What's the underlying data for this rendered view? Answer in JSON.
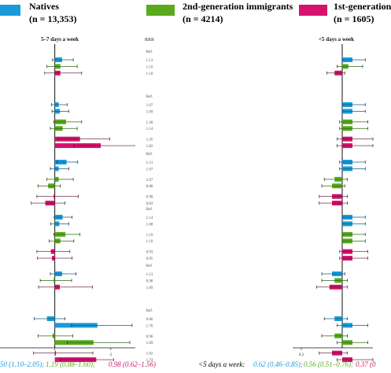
{
  "legend": {
    "natives": {
      "name": "Natives",
      "n": "(n = 13,353)",
      "color": "#1a9bd7"
    },
    "second_gen": {
      "name": "2nd-generation immigrants",
      "n": "(n = 4214)",
      "color": "#5aaa1e"
    },
    "first_gen": {
      "name": "1st-generation",
      "n": "(n = 1605)",
      "color": "#d6126e"
    }
  },
  "footer": {
    "left_prefix": "50 (1.10–2.05); ",
    "left_green": "1.19 (0.88–1.60); ",
    "left_pink": "0.98 (0.62–1.56)",
    "right_prefix": "<5 days a week: ",
    "right_blue": "0.62 (0.46–0.85); ",
    "right_green": "0.56 (0.51–0.76); ",
    "right_pink": "0.37 (0"
  },
  "chart_data": [
    {
      "type": "bar",
      "title": "5–7 days a week",
      "rrr_header": "RRR",
      "x_ticks": [
        "1",
        "2"
      ],
      "reference_line": 1,
      "xlim": [
        0.05,
        2.55
      ],
      "series": [
        "Natives",
        "2nd-generation immigrants",
        "1st-generation"
      ],
      "groups": [
        {
          "ref_label": "Ref.",
          "rows": [
            {
              "series": 0,
              "rrr": 1.13,
              "lo": 0.96,
              "hi": 1.33,
              "label": "1.13"
            },
            {
              "series": 1,
              "rrr": 1.1,
              "lo": 0.86,
              "hi": 1.4,
              "label": "1.10"
            },
            {
              "series": 2,
              "rrr": 1.1,
              "lo": 0.82,
              "hi": 1.48,
              "label": "1.10"
            }
          ]
        },
        {
          "ref_label": "Ref.",
          "rows": [
            {
              "series": 0,
              "rrr": 1.07,
              "lo": 0.94,
              "hi": 1.22,
              "label": "1.07"
            },
            {
              "series": 0,
              "rrr": 1.09,
              "lo": 0.95,
              "hi": 1.25,
              "label": "1.09"
            },
            {
              "series": 1,
              "rrr": 1.2,
              "lo": 0.98,
              "hi": 1.48,
              "label": "1.20"
            },
            {
              "series": 1,
              "rrr": 1.14,
              "lo": 0.92,
              "hi": 1.4,
              "label": "1.14"
            },
            {
              "series": 2,
              "rrr": 1.45,
              "lo": 1.06,
              "hi": 1.98,
              "label": "1.45"
            },
            {
              "series": 2,
              "rrr": 1.82,
              "lo": 1.34,
              "hi": 2.47,
              "label": "1.82"
            }
          ]
        },
        {
          "ref_label": "Ref.",
          "rows": [
            {
              "series": 0,
              "rrr": 1.21,
              "lo": 1.04,
              "hi": 1.41,
              "label": "1.21"
            },
            {
              "series": 0,
              "rrr": 1.07,
              "lo": 0.92,
              "hi": 1.25,
              "label": "1.07"
            },
            {
              "series": 1,
              "rrr": 1.07,
              "lo": 0.86,
              "hi": 1.33,
              "label": "1.07"
            },
            {
              "series": 1,
              "rrr": 0.88,
              "lo": 0.7,
              "hi": 1.1,
              "label": "0.88"
            },
            {
              "series": 2,
              "rrr": 0.98,
              "lo": 0.68,
              "hi": 1.42,
              "label": "0.98"
            },
            {
              "series": 2,
              "rrr": 0.83,
              "lo": 0.58,
              "hi": 1.18,
              "label": "0.83"
            }
          ]
        },
        {
          "ref_label": "Ref.",
          "rows": [
            {
              "series": 0,
              "rrr": 1.14,
              "lo": 0.99,
              "hi": 1.31,
              "label": "1.14"
            },
            {
              "series": 0,
              "rrr": 1.08,
              "lo": 0.93,
              "hi": 1.25,
              "label": "1.08"
            },
            {
              "series": 1,
              "rrr": 1.19,
              "lo": 0.98,
              "hi": 1.45,
              "label": "1.19"
            },
            {
              "series": 1,
              "rrr": 1.1,
              "lo": 0.9,
              "hi": 1.34,
              "label": "1.10"
            },
            {
              "series": 2,
              "rrr": 0.93,
              "lo": 0.68,
              "hi": 1.27,
              "label": "0.93"
            },
            {
              "series": 2,
              "rrr": 0.95,
              "lo": 0.69,
              "hi": 1.31,
              "label": "0.95"
            }
          ]
        },
        {
          "ref_label": "Ref.",
          "rows": [
            {
              "series": 0,
              "rrr": 1.13,
              "lo": 0.92,
              "hi": 1.38,
              "label": "1.13"
            },
            {
              "series": 1,
              "rrr": 0.98,
              "lo": 0.74,
              "hi": 1.3,
              "label": "0.98"
            },
            {
              "series": 2,
              "rrr": 1.09,
              "lo": 0.71,
              "hi": 1.67,
              "label": "1.09"
            }
          ]
        },
        {
          "ref_label": "Ref.",
          "rows": [
            {
              "series": 0,
              "rrr": 0.86,
              "lo": 0.63,
              "hi": 1.18,
              "label": "0.86"
            },
            {
              "series": 0,
              "rrr": 1.76,
              "lo": 1.3,
              "hi": 2.38,
              "label": "1.76"
            },
            {
              "series": 1,
              "rrr": 0.96,
              "lo": 0.7,
              "hi": 1.32,
              "label": "0.96"
            },
            {
              "series": 1,
              "rrr": 1.69,
              "lo": 1.22,
              "hi": 2.34,
              "label": "1.69"
            },
            {
              "series": 2,
              "rrr": 1.02,
              "lo": 0.62,
              "hi": 1.68,
              "label": "1.02"
            },
            {
              "series": 2,
              "rrr": 1.74,
              "lo": 1.1,
              "hi": 2.05,
              "label": "1.74"
            }
          ]
        }
      ]
    },
    {
      "type": "bar",
      "title": "<5 days a week",
      "x_ticks": [
        "0.2"
      ],
      "reference_line": 1,
      "xlim": [
        0.0,
        1.6
      ],
      "series": [
        "Natives",
        "2nd-generation immigrants",
        "1st-generation"
      ],
      "groups": [
        {
          "rows": [
            {
              "series": 0,
              "rrr": 1.2,
              "lo": 1.0,
              "hi": 1.45
            },
            {
              "series": 1,
              "rrr": 1.12,
              "lo": 0.9,
              "hi": 1.4
            },
            {
              "series": 2,
              "rrr": 0.85,
              "lo": 0.7,
              "hi": 1.05
            }
          ]
        },
        {
          "rows": [
            {
              "series": 0,
              "rrr": 1.2,
              "lo": 1.0,
              "hi": 1.45
            },
            {
              "series": 0,
              "rrr": 1.2,
              "lo": 1.0,
              "hi": 1.45
            },
            {
              "series": 1,
              "rrr": 1.2,
              "lo": 0.95,
              "hi": 1.5
            },
            {
              "series": 1,
              "rrr": 1.2,
              "lo": 0.95,
              "hi": 1.5
            },
            {
              "series": 2,
              "rrr": 1.2,
              "lo": 0.9,
              "hi": 1.6
            },
            {
              "series": 2,
              "rrr": 1.2,
              "lo": 0.9,
              "hi": 1.6
            }
          ]
        },
        {
          "rows": [
            {
              "series": 0,
              "rrr": 1.2,
              "lo": 0.95,
              "hi": 1.45
            },
            {
              "series": 0,
              "rrr": 1.2,
              "lo": 0.95,
              "hi": 1.45
            },
            {
              "series": 1,
              "rrr": 0.85,
              "lo": 0.65,
              "hi": 1.1
            },
            {
              "series": 1,
              "rrr": 0.8,
              "lo": 0.6,
              "hi": 1.05
            },
            {
              "series": 2,
              "rrr": 0.8,
              "lo": 0.55,
              "hi": 1.1
            },
            {
              "series": 2,
              "rrr": 0.8,
              "lo": 0.55,
              "hi": 1.1
            }
          ]
        },
        {
          "rows": [
            {
              "series": 0,
              "rrr": 1.2,
              "lo": 1.0,
              "hi": 1.45
            },
            {
              "series": 0,
              "rrr": 1.2,
              "lo": 1.0,
              "hi": 1.45
            },
            {
              "series": 1,
              "rrr": 1.2,
              "lo": 1.0,
              "hi": 1.45
            },
            {
              "series": 1,
              "rrr": 1.2,
              "lo": 1.0,
              "hi": 1.45
            },
            {
              "series": 2,
              "rrr": 1.2,
              "lo": 0.95,
              "hi": 1.5
            },
            {
              "series": 2,
              "rrr": 1.2,
              "lo": 0.95,
              "hi": 1.5
            }
          ]
        },
        {
          "rows": [
            {
              "series": 0,
              "rrr": 0.8,
              "lo": 0.6,
              "hi": 1.05
            },
            {
              "series": 1,
              "rrr": 0.85,
              "lo": 0.6,
              "hi": 1.1
            },
            {
              "series": 2,
              "rrr": 0.75,
              "lo": 0.5,
              "hi": 1.1
            }
          ]
        },
        {
          "rows": [
            {
              "series": 0,
              "rrr": 0.85,
              "lo": 0.65,
              "hi": 1.1
            },
            {
              "series": 0,
              "rrr": 1.2,
              "lo": 0.9,
              "hi": 1.5
            },
            {
              "series": 1,
              "rrr": 0.85,
              "lo": 0.6,
              "hi": 1.1
            },
            {
              "series": 1,
              "rrr": 1.2,
              "lo": 0.9,
              "hi": 1.5
            },
            {
              "series": 2,
              "rrr": 0.8,
              "lo": 0.55,
              "hi": 1.1
            },
            {
              "series": 2,
              "rrr": 1.2,
              "lo": 0.9,
              "hi": 1.6
            }
          ]
        }
      ]
    }
  ]
}
